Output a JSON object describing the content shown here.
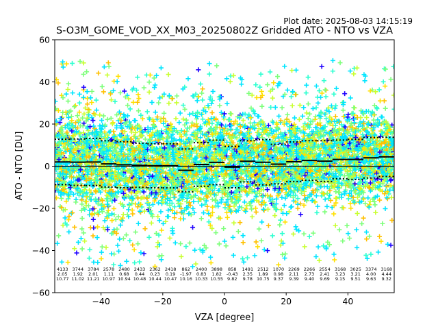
{
  "plot_date": "Plot date: 2025-08-03 14:15:19",
  "chart_data": {
    "type": "scatter",
    "title": "S-O3M_GOME_VOD_XX_M03_20250802Z Gridded ATO - NTO vs VZA",
    "xlabel": "VZA [degree]",
    "ylabel": "ATO - NTO [DU]",
    "xlim": [
      -55,
      55
    ],
    "ylim": [
      -60,
      60
    ],
    "xticks": [
      -40,
      -20,
      0,
      20,
      40
    ],
    "yticks": [
      -60,
      -40,
      -20,
      0,
      20,
      40,
      60
    ],
    "grid": false,
    "marker": "plus",
    "zero_line": 0,
    "colors": {
      "points": [
        "#1f00ff",
        "#00e5ff",
        "#2dffd0",
        "#7dff7a",
        "#c8ff30",
        "#ffe000",
        "#ffc000"
      ],
      "median": "#000000",
      "sigma": "#000000"
    },
    "bins": [
      {
        "vza": -52.5,
        "n": "4133",
        "mean": "2.05",
        "std": "10.77"
      },
      {
        "vza": -47.5,
        "n": "3744",
        "mean": "1.92",
        "std": "11.02"
      },
      {
        "vza": -42.5,
        "n": "3784",
        "mean": "2.01",
        "std": "11.21"
      },
      {
        "vza": -37.5,
        "n": "2578",
        "mean": "1.11",
        "std": "10.97"
      },
      {
        "vza": -32.5,
        "n": "2480",
        "mean": "0.68",
        "std": "10.94"
      },
      {
        "vza": -27.5,
        "n": "2433",
        "mean": "0.44",
        "std": "10.48"
      },
      {
        "vza": -22.5,
        "n": "2362",
        "mean": "0.23",
        "std": "10.44"
      },
      {
        "vza": -17.5,
        "n": "2418",
        "mean": "0.19",
        "std": "10.47"
      },
      {
        "vza": -12.5,
        "n": "862",
        "mean": "-1.97",
        "std": "10.16"
      },
      {
        "vza": -7.5,
        "n": "2400",
        "mean": "0.83",
        "std": "10.33"
      },
      {
        "vza": -2.5,
        "n": "3898",
        "mean": "1.82",
        "std": "10.55"
      },
      {
        "vza": 2.5,
        "n": "858",
        "mean": "-0.43",
        "std": "9.82"
      },
      {
        "vza": 7.5,
        "n": "1491",
        "mean": "2.35",
        "std": "9.78"
      },
      {
        "vza": 12.5,
        "n": "2512",
        "mean": "1.89",
        "std": "10.75"
      },
      {
        "vza": 17.5,
        "n": "1070",
        "mean": "0.98",
        "std": "9.37"
      },
      {
        "vza": 22.5,
        "n": "2269",
        "mean": "2.11",
        "std": "9.39"
      },
      {
        "vza": 27.5,
        "n": "2266",
        "mean": "2.73",
        "std": "9.40"
      },
      {
        "vza": 32.5,
        "n": "2554",
        "mean": "2.41",
        "std": "9.69"
      },
      {
        "vza": 37.5,
        "n": "3168",
        "mean": "3.23",
        "std": "9.15"
      },
      {
        "vza": 42.5,
        "n": "3025",
        "mean": "3.21",
        "std": "9.51"
      },
      {
        "vza": 47.5,
        "n": "3374",
        "mean": "4.00",
        "std": "9.63"
      },
      {
        "vza": 52.5,
        "n": "3168",
        "mean": "4.44",
        "std": "9.32"
      }
    ]
  }
}
